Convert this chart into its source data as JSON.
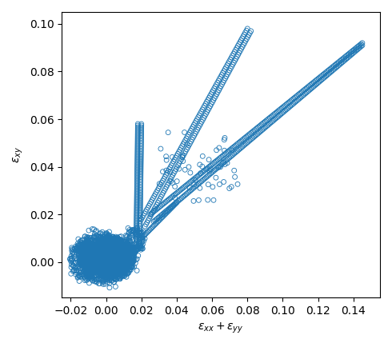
{
  "title": "",
  "xlabel": "$\\varepsilon_{xx} + \\varepsilon_{yy}$",
  "ylabel": "$\\varepsilon_{xy}$",
  "xlim": [
    -0.025,
    0.155
  ],
  "ylim": [
    -0.015,
    0.105
  ],
  "xticks": [
    -0.02,
    0.0,
    0.02,
    0.04,
    0.06,
    0.08,
    0.1,
    0.12,
    0.14
  ],
  "yticks": [
    0.0,
    0.02,
    0.04,
    0.06,
    0.08,
    0.1
  ],
  "marker_color": "#1f77b4",
  "marker_size": 18,
  "figsize": [
    4.9,
    4.34
  ],
  "dpi": 100
}
